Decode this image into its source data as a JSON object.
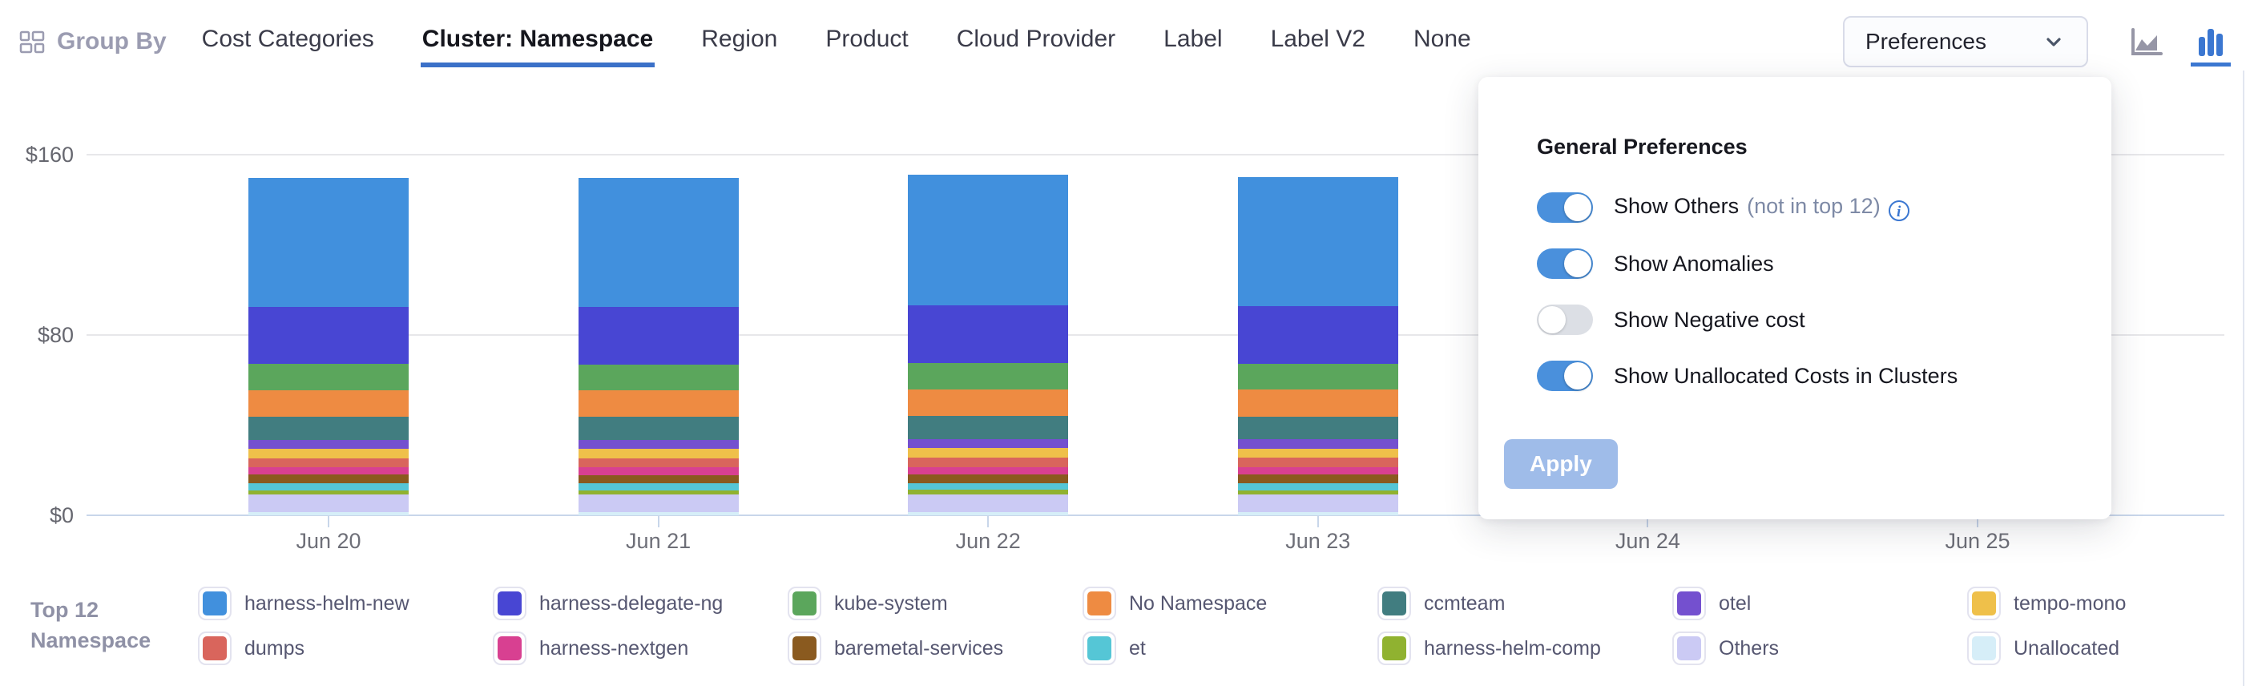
{
  "header": {
    "group_by_label": "Group By",
    "tabs": [
      {
        "label": "Cost Categories",
        "active": false
      },
      {
        "label": "Cluster: Namespace",
        "active": true
      },
      {
        "label": "Region",
        "active": false
      },
      {
        "label": "Product",
        "active": false
      },
      {
        "label": "Cloud Provider",
        "active": false
      },
      {
        "label": "Label",
        "active": false
      },
      {
        "label": "Label V2",
        "active": false
      },
      {
        "label": "None",
        "active": false
      }
    ],
    "preferences_label": "Preferences",
    "chart_type": {
      "selected": "column",
      "options": [
        "area-chart",
        "column-chart"
      ]
    },
    "accent_color": "#3b71c8"
  },
  "preferences_panel": {
    "title": "General Preferences",
    "toggles": [
      {
        "label": "Show Others",
        "suffix": "(not in top 12)",
        "info": true,
        "on": true
      },
      {
        "label": "Show Anomalies",
        "suffix": "",
        "info": false,
        "on": true
      },
      {
        "label": "Show Negative cost",
        "suffix": "",
        "info": false,
        "on": false
      },
      {
        "label": "Show Unallocated Costs in Clusters",
        "suffix": "",
        "info": false,
        "on": true
      }
    ],
    "apply_label": "Apply",
    "toggle_on_color": "#4a90dc",
    "toggle_off_color": "#dcdfe5"
  },
  "legend": {
    "title_line1": "Top 12",
    "title_line2": "Namespace"
  },
  "chart_data": {
    "type": "bar",
    "stacked": true,
    "categories": [
      "Jun 20",
      "Jun 21",
      "Jun 22",
      "Jun 23",
      "Jun 24",
      "Jun 25"
    ],
    "ylim": [
      0,
      160
    ],
    "y_ticks": [
      {
        "label": "$0",
        "value": 0
      },
      {
        "label": "$80",
        "value": 80
      },
      {
        "label": "$160",
        "value": 160
      }
    ],
    "grid": "horizontal",
    "legend_position": "bottom",
    "units": "USD",
    "series": [
      {
        "name": "harness-helm-new",
        "color": "#4190dd",
        "values": [
          57.0,
          57.2,
          57.8,
          57.4,
          0,
          0
        ]
      },
      {
        "name": "harness-delegate-ng",
        "color": "#4846d3",
        "values": [
          25.5,
          25.6,
          25.7,
          25.6,
          0,
          0
        ]
      },
      {
        "name": "kube-system",
        "color": "#5ba65c",
        "values": [
          11.5,
          11.4,
          11.5,
          11.5,
          0,
          0
        ]
      },
      {
        "name": "No Namespace",
        "color": "#ee8b42",
        "values": [
          12.0,
          11.9,
          12.0,
          12.0,
          0,
          0
        ]
      },
      {
        "name": "ccmteam",
        "color": "#417d80",
        "values": [
          10.0,
          10.1,
          10.1,
          10.0,
          0,
          0
        ]
      },
      {
        "name": "otel",
        "color": "#7450cf",
        "values": [
          4.0,
          4.0,
          4.1,
          4.0,
          0,
          0
        ]
      },
      {
        "name": "tempo-mono",
        "color": "#efc04a",
        "values": [
          4.2,
          4.2,
          4.2,
          4.2,
          0,
          0
        ]
      },
      {
        "name": "dumps",
        "color": "#d9655c",
        "values": [
          4.1,
          4.1,
          4.1,
          4.1,
          0,
          0
        ]
      },
      {
        "name": "harness-nextgen",
        "color": "#d84091",
        "values": [
          3.3,
          3.4,
          3.4,
          3.4,
          0,
          0
        ]
      },
      {
        "name": "baremetal-services",
        "color": "#8a5a1f",
        "values": [
          3.8,
          3.7,
          3.8,
          3.8,
          0,
          0
        ]
      },
      {
        "name": "et",
        "color": "#55c6d6",
        "values": [
          3.0,
          3.0,
          3.0,
          3.0,
          0,
          0
        ]
      },
      {
        "name": "harness-helm-comp",
        "color": "#90b230",
        "values": [
          2.0,
          2.0,
          2.0,
          2.0,
          0,
          0
        ]
      },
      {
        "name": "Others",
        "color": "#cbcaf4",
        "values": [
          7.6,
          7.6,
          7.7,
          7.6,
          0,
          0
        ]
      },
      {
        "name": "Unallocated",
        "color": "#d6eef8",
        "values": [
          1.6,
          1.6,
          1.6,
          1.6,
          0,
          0
        ]
      }
    ]
  }
}
